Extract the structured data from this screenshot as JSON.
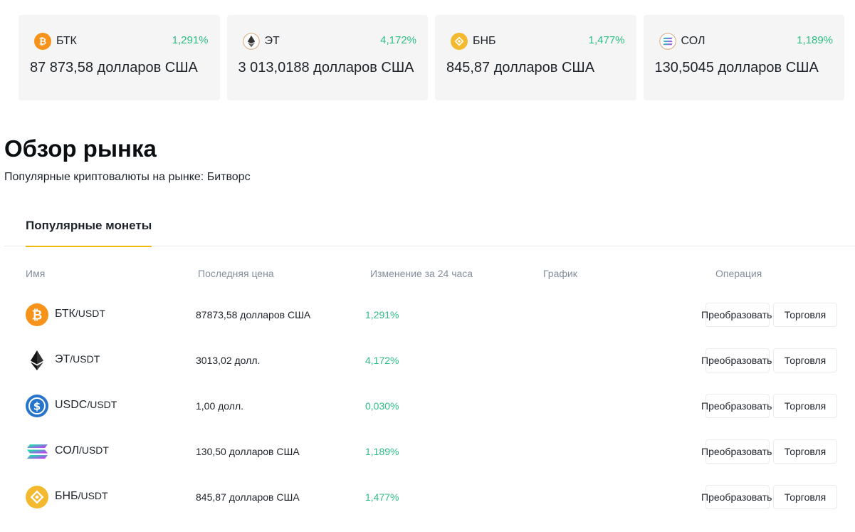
{
  "tickers": [
    {
      "symbol": "БТК",
      "change": "1,291%",
      "price": "87 873,58 долларов США",
      "icon": "bitcoin-icon",
      "color": "#f7931a"
    },
    {
      "symbol": "ЭТ",
      "change": "4,172%",
      "price": "3 013,0188 долларов США",
      "icon": "ethereum-icon",
      "color": "#343434"
    },
    {
      "symbol": "БНБ",
      "change": "1,477%",
      "price": "845,87 долларов США",
      "icon": "bnb-icon",
      "color": "#f3ba2f"
    },
    {
      "symbol": "СОЛ",
      "change": "1,189%",
      "price": "130,5045 долларов США",
      "icon": "solana-icon",
      "color": "#9945ff"
    }
  ],
  "market": {
    "title": "Обзор рынка",
    "subtitle": "Популярные криптовалюты на рынке: Битворс"
  },
  "tabs": {
    "active": "Популярные монеты"
  },
  "table": {
    "headers": {
      "name": "Имя",
      "price": "Последняя цена",
      "change": "Изменение за 24 часа",
      "chart": "График",
      "operation": "Операция"
    },
    "rows": [
      {
        "base": "БТК",
        "quote": "/USDT",
        "price": "87873,58 долларов США",
        "change": "1,291%",
        "icon": "bitcoin-icon"
      },
      {
        "base": "ЭТ",
        "quote": "/USDT",
        "price": "3013,02 долл.",
        "change": "4,172%",
        "icon": "ethereum-icon"
      },
      {
        "base": "USDC",
        "quote": "/USDT",
        "price": "1,00 долл.",
        "change": "0,030%",
        "icon": "usdc-icon"
      },
      {
        "base": "СОЛ",
        "quote": "/USDT",
        "price": "130,50 долларов США",
        "change": "1,189%",
        "icon": "solana-icon"
      },
      {
        "base": "БНБ",
        "quote": "/USDT",
        "price": "845,87 долларов США",
        "change": "1,477%",
        "icon": "bnb-icon"
      }
    ],
    "convert_label": "Преобразовать",
    "trade_label": "Торговля"
  },
  "colors": {
    "positive": "#2ebd85",
    "tab_underline": "#f0b90b",
    "card_bg": "#f5f5f5"
  }
}
